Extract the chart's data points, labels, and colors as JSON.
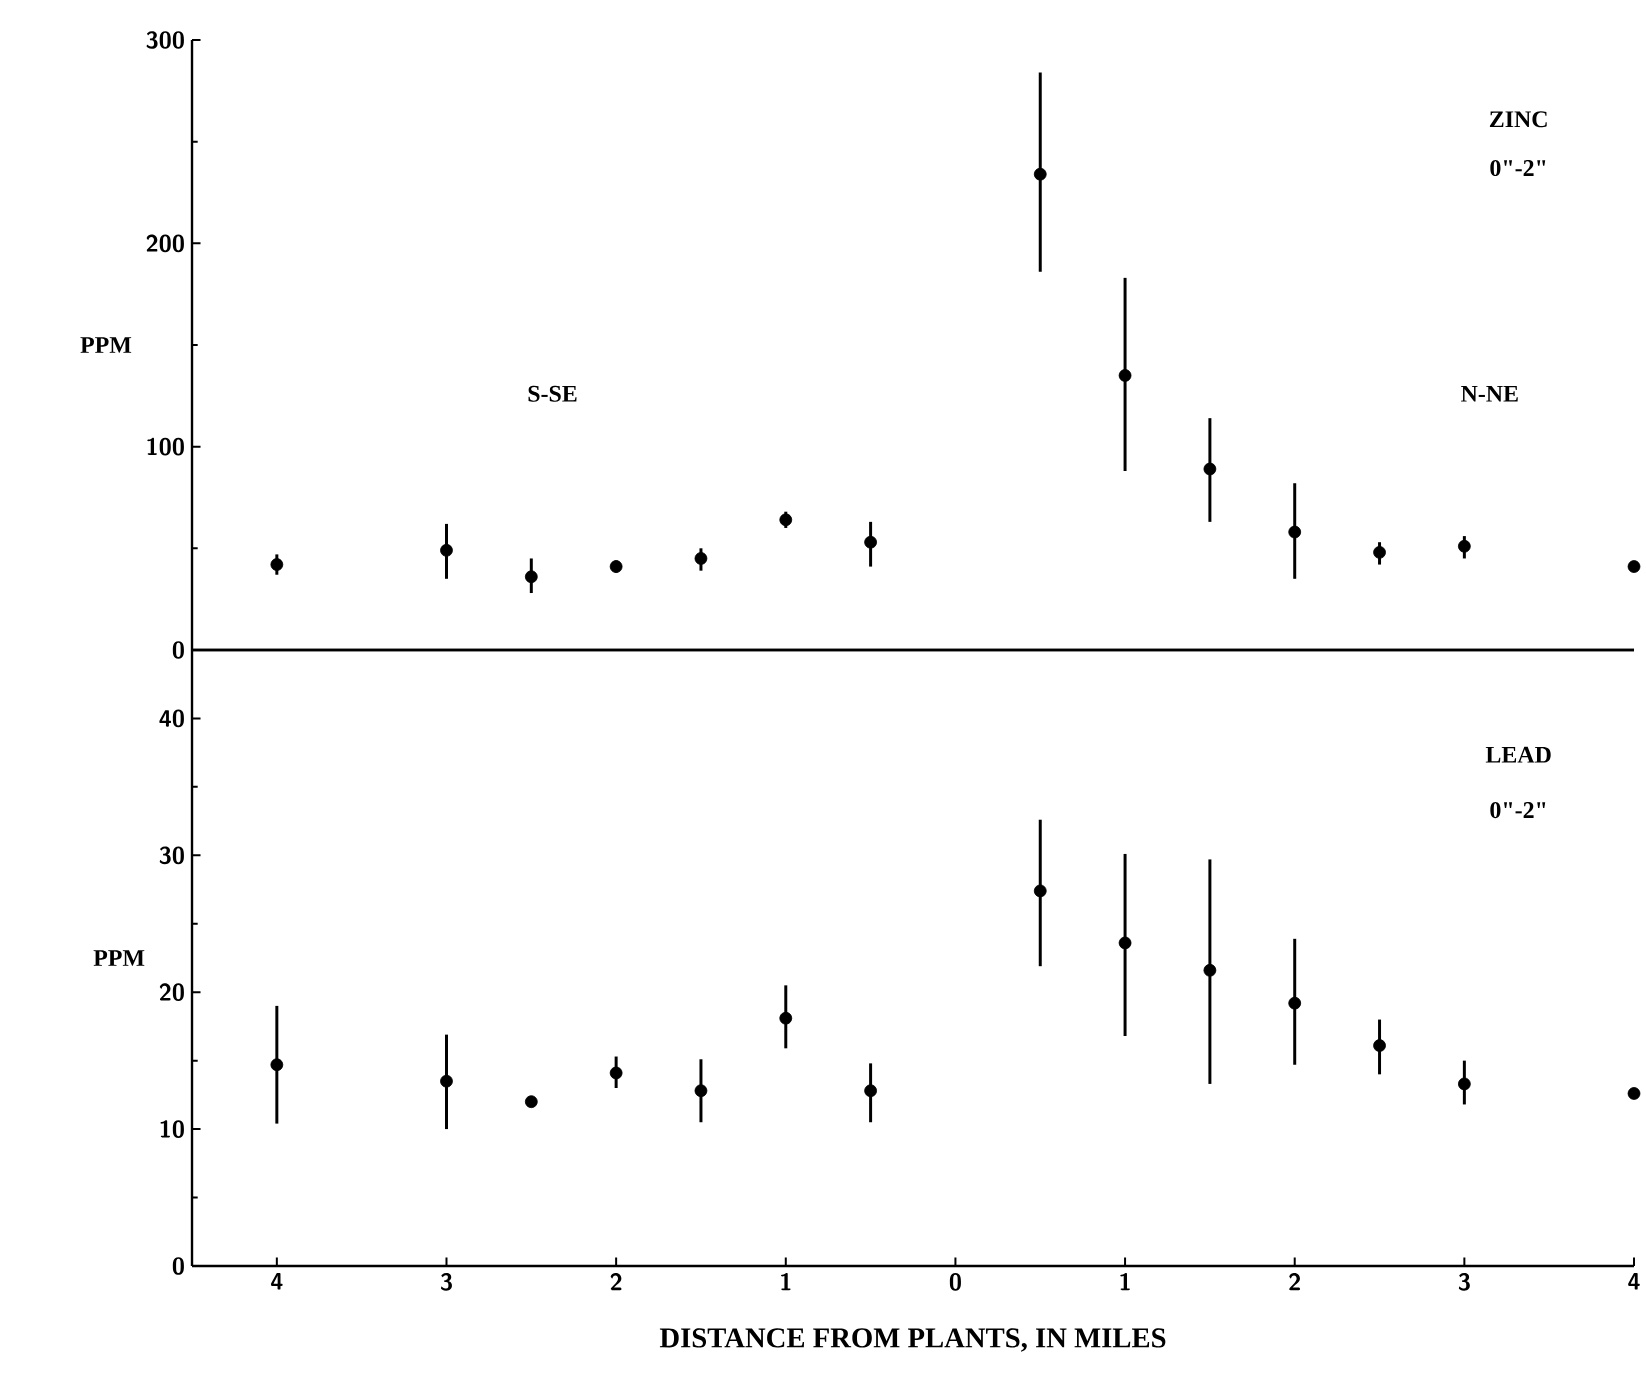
{
  "chart_data": [
    {
      "type": "scatter",
      "ylabel": "PPM",
      "annotations": [
        "S-SE",
        "N-NE",
        "ZINC",
        "0\"-2\""
      ],
      "x": [
        -4,
        -3,
        -2.5,
        -2,
        -1.5,
        -1,
        -0.5,
        0.5,
        1,
        1.5,
        2,
        2.5,
        3,
        4
      ],
      "series": [
        {
          "color": "#000000",
          "values": [
            42,
            49,
            36,
            41,
            45,
            64,
            53,
            234,
            135,
            89,
            58,
            48,
            51,
            41
          ],
          "errors": [
            [
              37,
              47
            ],
            [
              35,
              62
            ],
            [
              28,
              45
            ],
            [
              38,
              44
            ],
            [
              39,
              50
            ],
            [
              60,
              68
            ],
            [
              41,
              63
            ],
            [
              186,
              284
            ],
            [
              88,
              183
            ],
            [
              63,
              114
            ],
            [
              35,
              82
            ],
            [
              42,
              53
            ],
            [
              45,
              56
            ],
            null
          ]
        }
      ],
      "xlim": [
        -4.5,
        4
      ],
      "ylim": [
        0,
        300
      ],
      "yticks": [
        0,
        100,
        200,
        300
      ],
      "tick_labels": "y",
      "marker": "circle"
    },
    {
      "type": "scatter",
      "ylabel": "PPM",
      "xlabel": "DISTANCE FROM PLANTS, IN MILES",
      "annotations": [
        "LEAD",
        "0\"-2\""
      ],
      "x": [
        -4,
        -3,
        -2.5,
        -2,
        -1.5,
        -1,
        -0.5,
        0.5,
        1,
        1.5,
        2,
        2.5,
        3,
        4
      ],
      "series": [
        {
          "color": "#000000",
          "values": [
            14.7,
            13.5,
            12.0,
            14.1,
            12.8,
            18.1,
            12.8,
            27.4,
            23.6,
            21.6,
            19.2,
            16.1,
            13.3,
            12.6
          ],
          "errors": [
            [
              10.4,
              19.0
            ],
            [
              10.0,
              16.9
            ],
            null,
            [
              13.0,
              15.3
            ],
            [
              10.5,
              15.1
            ],
            [
              15.9,
              20.5
            ],
            [
              10.5,
              14.8
            ],
            [
              21.9,
              32.6
            ],
            [
              16.8,
              30.1
            ],
            [
              13.3,
              29.7
            ],
            [
              14.7,
              23.9
            ],
            [
              14.0,
              18.0
            ],
            [
              11.8,
              15.0
            ],
            null
          ]
        }
      ],
      "xlim": [
        -4.5,
        4
      ],
      "ylim": [
        0,
        45
      ],
      "yticks": [
        0,
        10,
        20,
        30,
        40
      ],
      "xticks": [
        {
          "value": -4,
          "label": "4"
        },
        {
          "value": -3,
          "label": "3"
        },
        {
          "value": -2,
          "label": "2"
        },
        {
          "value": -1,
          "label": "1"
        },
        0,
        1,
        2,
        3,
        4
      ],
      "marker": "circle"
    }
  ]
}
